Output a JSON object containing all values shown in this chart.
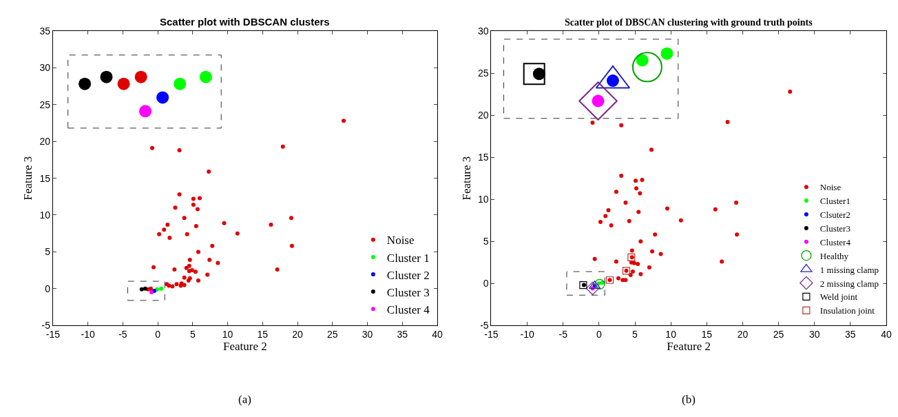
{
  "chart_data": [
    {
      "type": "scatter",
      "title": "Scatter plot with DBSCAN clusters",
      "xlabel": "Feature 2",
      "ylabel": "Feature 3",
      "xlim": [
        -15,
        40
      ],
      "ylim": [
        -5,
        35
      ],
      "xticks": [
        -15,
        -10,
        -5,
        0,
        5,
        10,
        15,
        20,
        25,
        30,
        35,
        40
      ],
      "yticks": [
        -5,
        0,
        5,
        10,
        15,
        20,
        25,
        30,
        35
      ],
      "legend": "bottom right",
      "annotations": [
        "(a)"
      ],
      "series": [
        {
          "name": "Noise",
          "color": "#e00000",
          "marker": "circle",
          "x": [
            26.6,
            -0.8,
            3.1,
            17.9,
            7.3,
            3.1,
            5.1,
            6.0,
            5.1,
            2.5,
            5.7,
            3.8,
            19.1,
            9.5,
            16.2,
            1.4,
            0.9,
            5.5,
            0.2,
            11.4,
            4.2,
            1.7,
            7.8,
            19.2,
            5.8,
            4.6,
            7.4,
            8.6,
            -0.6,
            2.4,
            4.1,
            4.5,
            4.5,
            4.9,
            5.4,
            17.1,
            7.1,
            3.8,
            4.6,
            5.8,
            4.4,
            1.3,
            1.6,
            2.1,
            2.7,
            3.4,
            3.3,
            3.8,
            -1.4,
            -1.0
          ],
          "values": [
            22.8,
            19.1,
            18.8,
            19.3,
            15.9,
            12.8,
            12.2,
            12.3,
            11.4,
            11.0,
            10.8,
            9.6,
            9.6,
            8.9,
            8.7,
            8.7,
            8.0,
            8.5,
            7.4,
            7.5,
            7.4,
            6.9,
            5.8,
            5.8,
            5.0,
            3.9,
            3.9,
            3.5,
            2.9,
            2.6,
            2.8,
            3.1,
            2.4,
            2.5,
            2.3,
            2.6,
            1.9,
            1.5,
            1.4,
            1.1,
            1.1,
            0.6,
            0.4,
            0.3,
            0.6,
            0.7,
            0.4,
            0.5,
            -0.1,
            0.0
          ]
        },
        {
          "name": "Cluster 1",
          "color": "#00ff00",
          "marker": "circle",
          "x": [
            -0.1,
            0.5
          ],
          "values": [
            -0.1,
            0.0
          ]
        },
        {
          "name": "Cluster 2",
          "color": "#0000ff",
          "marker": "circle",
          "x": [
            -0.5
          ],
          "values": [
            -0.3
          ]
        },
        {
          "name": "Cluster 3",
          "color": "#000000",
          "marker": "circle",
          "x": [
            -2.3,
            -1.8
          ],
          "values": [
            -0.1,
            0.0
          ]
        },
        {
          "name": "Cluster 4",
          "color": "#ff00ff",
          "marker": "circle",
          "x": [
            -0.9
          ],
          "values": [
            -0.5
          ]
        }
      ]
    },
    {
      "type": "scatter",
      "title": "Scatter plot of DBSCAN clustering with ground truth points",
      "xlabel": "Feature 2",
      "ylabel": "Feature 3",
      "xlim": [
        -15,
        40
      ],
      "ylim": [
        -5,
        30
      ],
      "xticks": [
        -15,
        -10,
        -5,
        0,
        5,
        10,
        15,
        20,
        25,
        30,
        35,
        40
      ],
      "yticks": [
        -5,
        0,
        5,
        10,
        15,
        20,
        25,
        30
      ],
      "legend": "bottom right",
      "annotations": [
        "(b)"
      ],
      "series": [
        {
          "name": "Noise",
          "color": "#e00000",
          "marker": "circle",
          "x": [
            26.6,
            17.9,
            -0.9,
            3.1,
            7.3,
            3.1,
            5.1,
            6.0,
            5.2,
            2.4,
            5.7,
            3.7,
            19.1,
            9.5,
            16.2,
            1.3,
            0.9,
            5.5,
            0.2,
            11.4,
            4.2,
            1.7,
            7.8,
            19.2,
            5.8,
            4.6,
            7.4,
            8.6,
            -0.6,
            2.4,
            4.6,
            4.5,
            4.9,
            5.4,
            17.1,
            7.0,
            3.8,
            4.7,
            5.8,
            4.4,
            1.5,
            2.7,
            3.3,
            3.7
          ],
          "values": [
            22.8,
            19.2,
            19.1,
            18.8,
            15.9,
            12.8,
            12.2,
            12.3,
            11.3,
            10.9,
            10.7,
            9.6,
            9.6,
            8.9,
            8.8,
            8.7,
            8.0,
            8.5,
            7.3,
            7.5,
            7.4,
            6.9,
            5.8,
            5.8,
            5.0,
            3.9,
            3.8,
            3.5,
            2.9,
            2.6,
            3.1,
            2.5,
            2.4,
            2.3,
            2.6,
            1.9,
            1.5,
            1.4,
            1.1,
            1.0,
            0.4,
            0.6,
            0.4,
            0.4
          ]
        },
        {
          "name": "Cluster1",
          "color": "#00ff00",
          "marker": "circle",
          "x": [
            0.0,
            0.5
          ],
          "values": [
            0.0,
            0.1
          ]
        },
        {
          "name": "Clsuter2",
          "color": "#0000ff",
          "marker": "circle",
          "x": [
            -0.6
          ],
          "values": [
            -0.3
          ]
        },
        {
          "name": "Cluster3",
          "color": "#000000",
          "marker": "circle",
          "x": [
            -2.1
          ],
          "values": [
            -0.2
          ]
        },
        {
          "name": "Cluster4",
          "color": "#ff00ff",
          "marker": "circle",
          "x": [
            -0.9
          ],
          "values": [
            -0.6
          ]
        },
        {
          "name": "Healthy",
          "color": "#00a000",
          "marker": "circle-open",
          "x": [
            0.1
          ],
          "values": [
            -0.1
          ]
        },
        {
          "name": "1 missing clamp",
          "color": "#2020c0",
          "marker": "triangle-open",
          "x": [
            -0.6
          ],
          "values": [
            -0.3
          ]
        },
        {
          "name": "2 missing clamp",
          "color": "#7b2a8a",
          "marker": "diamond-open",
          "x": [
            -0.9
          ],
          "values": [
            -0.6
          ]
        },
        {
          "name": "Weld joint",
          "color": "#000000",
          "marker": "square-open",
          "x": [
            -2.2
          ],
          "values": [
            -0.2
          ]
        },
        {
          "name": "Insulation joint",
          "color": "#c03030",
          "marker": "square-open",
          "x": [
            4.5,
            3.8,
            1.5
          ],
          "values": [
            3.1,
            1.5,
            0.4
          ]
        }
      ]
    }
  ]
}
